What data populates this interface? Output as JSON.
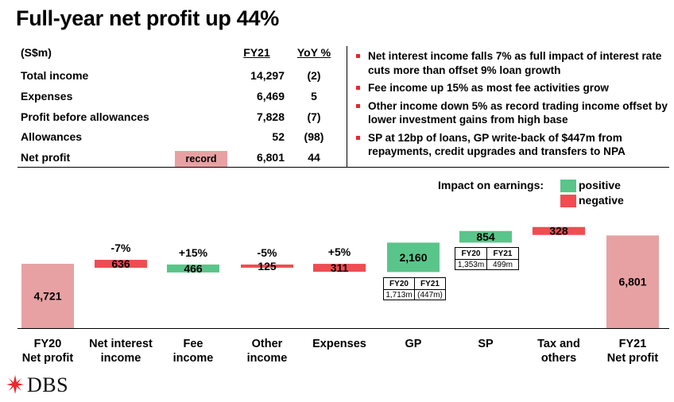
{
  "title": "Full-year net profit up 44%",
  "table": {
    "unit": "(S$m)",
    "col1": "FY21",
    "col2": "YoY %",
    "rows": [
      {
        "label": "Total income",
        "fy21": "14,297",
        "yoy": "(2)"
      },
      {
        "label": "Expenses",
        "fy21": "6,469",
        "yoy": "5"
      },
      {
        "label": "Profit before allowances",
        "fy21": "7,828",
        "yoy": "(7)"
      },
      {
        "label": "Allowances",
        "fy21": "52",
        "yoy": "(98)"
      },
      {
        "label": "Net profit",
        "fy21": "6,801",
        "yoy": "44"
      }
    ],
    "record_tag": "record"
  },
  "bullets": [
    "Net interest income falls 7% as full impact of interest rate cuts more than offset 9% loan growth",
    "Fee income up 15% as most fee activities grow",
    "Other income down 5% as record trading income offset by lower investment gains from high base",
    "SP at 12bp of loans, GP write-back of $447m from repayments, credit upgrades and transfers to NPA"
  ],
  "legend": {
    "title": "Impact on earnings:",
    "positive": "positive",
    "negative": "negative"
  },
  "colors": {
    "positive": "#5ac58a",
    "negative": "#ef4d51",
    "total": "#e8a1a3",
    "bullet": "#e8272e",
    "logo_red": "#e8272e"
  },
  "chart_data": {
    "type": "waterfall",
    "title": "",
    "unit": "S$m",
    "ylim": [
      0,
      7200
    ],
    "bars": [
      {
        "category": [
          "FY20",
          "Net profit"
        ],
        "value": 4721,
        "label": "4,721",
        "kind": "total",
        "pct": ""
      },
      {
        "category": [
          "Net interest",
          "income"
        ],
        "value": -636,
        "label": "636",
        "kind": "negative",
        "pct": "-7%"
      },
      {
        "category": [
          "Fee",
          "income"
        ],
        "value": 466,
        "label": "466",
        "kind": "positive",
        "pct": "+15%"
      },
      {
        "category": [
          "Other",
          "income"
        ],
        "value": -125,
        "label": "125",
        "kind": "negative",
        "pct": "-5%"
      },
      {
        "category": [
          "Expenses"
        ],
        "value": -311,
        "label": "311",
        "kind": "negative",
        "pct": "+5%"
      },
      {
        "category": [
          "GP"
        ],
        "value": 2160,
        "label": "2,160",
        "kind": "positive",
        "pct": ""
      },
      {
        "category": [
          "SP"
        ],
        "value": 854,
        "label": "854",
        "kind": "positive",
        "pct": ""
      },
      {
        "category": [
          "Tax and",
          "others"
        ],
        "value": -328,
        "label": "328",
        "kind": "negative",
        "pct": ""
      },
      {
        "category": [
          "FY21",
          "Net profit"
        ],
        "value": 6801,
        "label": "6,801",
        "kind": "total",
        "pct": ""
      }
    ],
    "sub_tables": {
      "gp": {
        "h1": "FY20",
        "h2": "FY21",
        "v1": "1,713m",
        "v2": "(447m)"
      },
      "sp": {
        "h1": "FY20",
        "h2": "FY21",
        "v1": "1,353m",
        "v2": "499m"
      }
    }
  },
  "logo": {
    "text": "DBS"
  }
}
